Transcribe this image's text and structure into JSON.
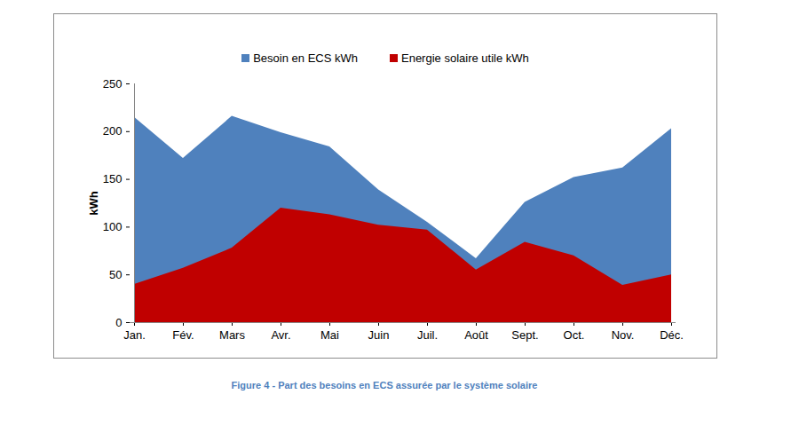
{
  "chart_data": {
    "type": "area",
    "title": "Figure 4 - Part des besoins en ECS assurée par le système solaire",
    "y_label": "kWh",
    "categories": [
      "Jan.",
      "Fév.",
      "Mars",
      "Avr.",
      "Mai",
      "Juin",
      "Juil.",
      "Août",
      "Sept.",
      "Oct.",
      "Nov.",
      "Déc."
    ],
    "series": [
      {
        "name": "Besoin en ECS kWh",
        "color": "#4f81bd",
        "values": [
          215,
          172,
          216,
          199,
          184,
          139,
          105,
          67,
          126,
          152,
          162,
          203
        ]
      },
      {
        "name": "Energie solaire utile kWh",
        "color": "#c00000",
        "values": [
          40,
          57,
          78,
          120,
          113,
          102,
          97,
          55,
          84,
          70,
          39,
          50
        ]
      }
    ],
    "ylim": [
      0,
      250
    ],
    "yticks": [
      0,
      50,
      100,
      150,
      200,
      250
    ],
    "grid": false,
    "stacked": false,
    "legend": "top"
  }
}
